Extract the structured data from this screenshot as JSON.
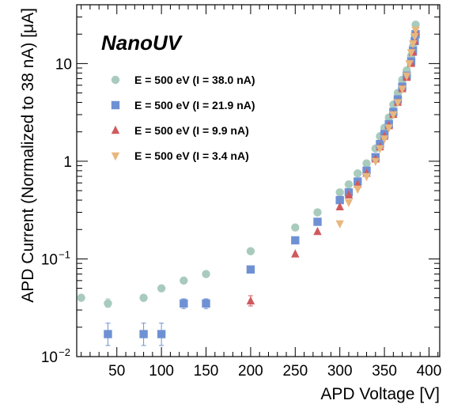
{
  "chart_data": {
    "type": "scatter",
    "annotation": "NanoUV",
    "xlabel": "APD Voltage [V]",
    "ylabel": "APD Current (Normalized to 38 nA) [μA]",
    "xlim": [
      5,
      412
    ],
    "ylim": [
      0.01,
      40
    ],
    "yscale": "log",
    "x_ticks": [
      50,
      100,
      150,
      200,
      250,
      300,
      350,
      400
    ],
    "y_ticks": [
      {
        "value": 0.01,
        "base": "10",
        "exp": "−2"
      },
      {
        "value": 0.1,
        "base": "10",
        "exp": "−1"
      },
      {
        "value": 1,
        "base": "1",
        "exp": ""
      },
      {
        "value": 10,
        "base": "10",
        "exp": ""
      }
    ],
    "grid": false,
    "legend_position": "upper-left",
    "series": [
      {
        "name": "E = 500 eV (I = 38.0 nA)",
        "marker": "circle",
        "color": "#a8cbbd",
        "points": [
          {
            "x": 10,
            "y": 0.04
          },
          {
            "x": 40,
            "y": 0.035,
            "ylo": 0.032,
            "yhi": 0.039
          },
          {
            "x": 80,
            "y": 0.04,
            "ylo": 0.037,
            "yhi": 0.043
          },
          {
            "x": 100,
            "y": 0.05
          },
          {
            "x": 125,
            "y": 0.06
          },
          {
            "x": 150,
            "y": 0.07
          },
          {
            "x": 200,
            "y": 0.12
          },
          {
            "x": 250,
            "y": 0.21
          },
          {
            "x": 275,
            "y": 0.3
          },
          {
            "x": 300,
            "y": 0.48
          },
          {
            "x": 310,
            "y": 0.58
          },
          {
            "x": 320,
            "y": 0.75
          },
          {
            "x": 330,
            "y": 0.95
          },
          {
            "x": 340,
            "y": 1.35
          },
          {
            "x": 345,
            "y": 1.8
          },
          {
            "x": 350,
            "y": 2.2
          },
          {
            "x": 355,
            "y": 2.8
          },
          {
            "x": 360,
            "y": 3.8
          },
          {
            "x": 365,
            "y": 5.0
          },
          {
            "x": 370,
            "y": 6.8
          },
          {
            "x": 375,
            "y": 8.5
          },
          {
            "x": 380,
            "y": 12.0
          },
          {
            "x": 382,
            "y": 15.0
          },
          {
            "x": 384,
            "y": 20.0
          },
          {
            "x": 385,
            "y": 25.0
          }
        ]
      },
      {
        "name": "E = 500 eV (I = 21.9 nA)",
        "marker": "square",
        "color": "#6f91d4",
        "points": [
          {
            "x": 40,
            "y": 0.017,
            "ylo": 0.013,
            "yhi": 0.022
          },
          {
            "x": 80,
            "y": 0.017,
            "ylo": 0.013,
            "yhi": 0.022
          },
          {
            "x": 100,
            "y": 0.017,
            "ylo": 0.013,
            "yhi": 0.022
          },
          {
            "x": 125,
            "y": 0.035,
            "ylo": 0.031,
            "yhi": 0.039
          },
          {
            "x": 150,
            "y": 0.035,
            "ylo": 0.031,
            "yhi": 0.039
          },
          {
            "x": 200,
            "y": 0.078
          },
          {
            "x": 250,
            "y": 0.155
          },
          {
            "x": 275,
            "y": 0.24
          },
          {
            "x": 300,
            "y": 0.4
          },
          {
            "x": 310,
            "y": 0.48
          },
          {
            "x": 320,
            "y": 0.62
          },
          {
            "x": 330,
            "y": 0.8
          },
          {
            "x": 340,
            "y": 1.1
          },
          {
            "x": 345,
            "y": 1.5
          },
          {
            "x": 350,
            "y": 1.9
          },
          {
            "x": 355,
            "y": 2.4
          },
          {
            "x": 360,
            "y": 3.2
          },
          {
            "x": 365,
            "y": 4.3
          },
          {
            "x": 370,
            "y": 5.8
          },
          {
            "x": 375,
            "y": 7.5
          },
          {
            "x": 380,
            "y": 10.5
          },
          {
            "x": 382,
            "y": 13.5
          },
          {
            "x": 384,
            "y": 17.0
          },
          {
            "x": 385,
            "y": 20.0
          }
        ]
      },
      {
        "name": "E = 500 eV (I = 9.9 nA)",
        "marker": "triangle-up",
        "color": "#cf5a5e",
        "points": [
          {
            "x": 200,
            "y": 0.037,
            "ylo": 0.033,
            "yhi": 0.042
          },
          {
            "x": 250,
            "y": 0.112
          },
          {
            "x": 275,
            "y": 0.19
          },
          {
            "x": 300,
            "y": 0.34
          },
          {
            "x": 310,
            "y": 0.45
          },
          {
            "x": 320,
            "y": 0.58
          },
          {
            "x": 330,
            "y": 0.75
          },
          {
            "x": 340,
            "y": 1.05
          },
          {
            "x": 345,
            "y": 1.4
          },
          {
            "x": 350,
            "y": 1.8
          },
          {
            "x": 355,
            "y": 2.3
          },
          {
            "x": 360,
            "y": 3.0
          },
          {
            "x": 365,
            "y": 4.0
          },
          {
            "x": 370,
            "y": 5.5
          },
          {
            "x": 375,
            "y": 7.2
          },
          {
            "x": 380,
            "y": 10.0
          },
          {
            "x": 382,
            "y": 13.0
          },
          {
            "x": 384,
            "y": 17.0
          },
          {
            "x": 385,
            "y": 21.0
          }
        ]
      },
      {
        "name": "E = 500 eV (I = 3.4 nA)",
        "marker": "triangle-down",
        "color": "#e8b77e",
        "points": [
          {
            "x": 300,
            "y": 0.23
          },
          {
            "x": 310,
            "y": 0.38
          },
          {
            "x": 320,
            "y": 0.52
          },
          {
            "x": 330,
            "y": 0.7
          },
          {
            "x": 340,
            "y": 1.0
          },
          {
            "x": 345,
            "y": 1.35
          },
          {
            "x": 350,
            "y": 1.7
          },
          {
            "x": 355,
            "y": 2.2
          },
          {
            "x": 360,
            "y": 3.0
          },
          {
            "x": 365,
            "y": 4.0
          },
          {
            "x": 370,
            "y": 5.5
          },
          {
            "x": 375,
            "y": 7.5
          },
          {
            "x": 378,
            "y": 10.0
          },
          {
            "x": 380,
            "y": 13.0
          },
          {
            "x": 382,
            "y": 16.0
          },
          {
            "x": 384,
            "y": 19.0
          },
          {
            "x": 385,
            "y": 22.0
          }
        ]
      }
    ]
  }
}
